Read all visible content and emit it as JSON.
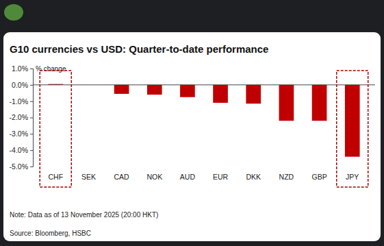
{
  "chart_data": {
    "type": "bar",
    "title": "G10 currencies vs USD: Quarter-to-date performance",
    "y_label": "% change",
    "categories": [
      "CHF",
      "SEK",
      "CAD",
      "NOK",
      "AUD",
      "EUR",
      "DKK",
      "NZD",
      "GBP",
      "JPY"
    ],
    "values": [
      0.05,
      0,
      -0.55,
      -0.6,
      -0.75,
      -1.1,
      -1.15,
      -2.2,
      -2.2,
      -4.4
    ],
    "color": "#c00000",
    "ylim": [
      -5,
      1
    ],
    "yticks": [
      {
        "value": -5,
        "label": "-5.0%"
      },
      {
        "value": -4,
        "label": "-4.0%"
      },
      {
        "value": -3,
        "label": "-3.0%"
      },
      {
        "value": -2,
        "label": "-2.0%"
      },
      {
        "value": -1,
        "label": "-1.0%"
      },
      {
        "value": 0,
        "label": "0.0%"
      },
      {
        "value": 1,
        "label": "1.0%"
      }
    ],
    "grid": false,
    "annotations": [
      "Note: Data as of 13 November 2025 (20:00 HKT)",
      "Source: Bloomberg, HSBC"
    ]
  }
}
